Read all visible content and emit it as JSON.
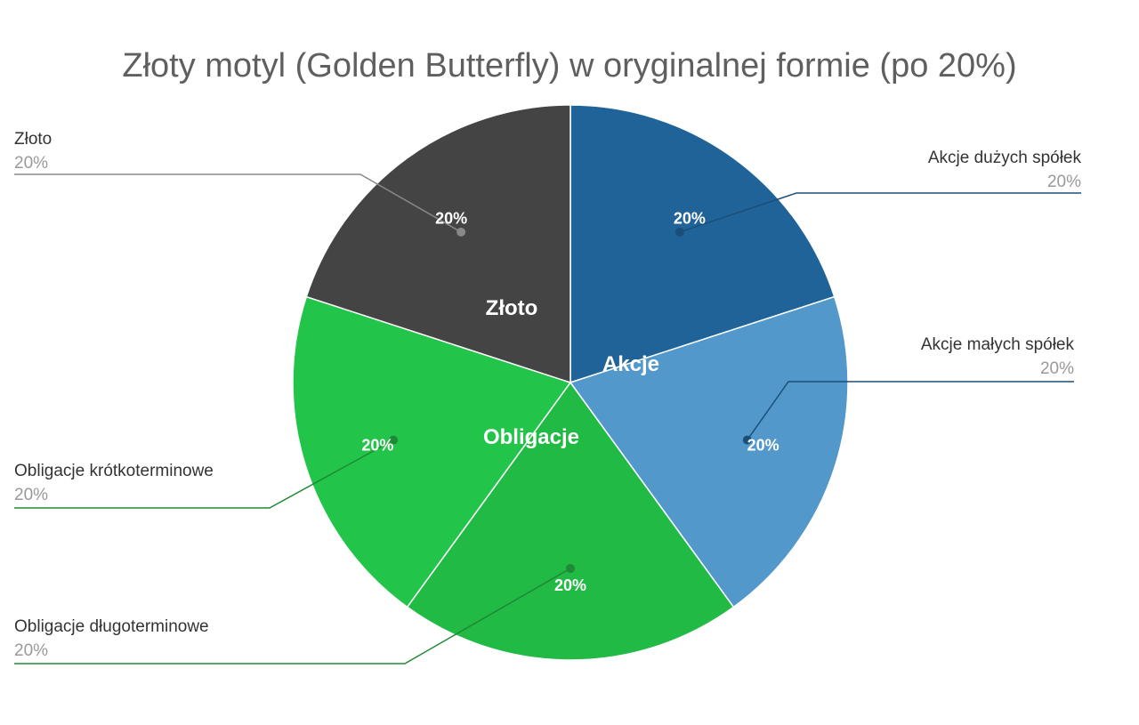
{
  "chart_data": {
    "type": "pie",
    "title": "Złoty motyl (Golden Butterfly) w oryginalnej formie (po 20%)",
    "start_angle_deg": 0,
    "direction": "clockwise",
    "slices": [
      {
        "id": "akcje-duzych",
        "name": "Akcje dużych spółek",
        "value": 20,
        "label": "20%",
        "side_value": "20%",
        "color": "#1f6398",
        "line_color": "#1b4f7a",
        "side": "right"
      },
      {
        "id": "akcje-malych",
        "name": "Akcje małych spółek",
        "value": 20,
        "label": "20%",
        "side_value": "20%",
        "color": "#5398cb",
        "line_color": "#1b4f7a",
        "side": "right"
      },
      {
        "id": "oblig-dlugo",
        "name": "Obligacje długoterminowe",
        "value": 20,
        "label": "20%",
        "side_value": "20%",
        "color": "#21ba45",
        "line_color": "#1e8a36",
        "side": "left"
      },
      {
        "id": "oblig-krotko",
        "name": "Obligacje krótkoterminowe",
        "value": 20,
        "label": "20%",
        "side_value": "20%",
        "color": "#22c54a",
        "line_color": "#1e8a36",
        "side": "left"
      },
      {
        "id": "zloto",
        "name": "Złoto",
        "value": 20,
        "label": "20%",
        "side_value": "20%",
        "color": "#444444",
        "line_color": "#888888",
        "side": "left"
      }
    ],
    "groups": [
      {
        "name": "Akcje",
        "slices": [
          "akcje-duzych",
          "akcje-malych"
        ]
      },
      {
        "name": "Obligacje",
        "slices": [
          "oblig-dlugo",
          "oblig-krotko"
        ]
      },
      {
        "name": "Złoto",
        "slices": [
          "zloto"
        ]
      }
    ],
    "legend": "outside-labels"
  }
}
